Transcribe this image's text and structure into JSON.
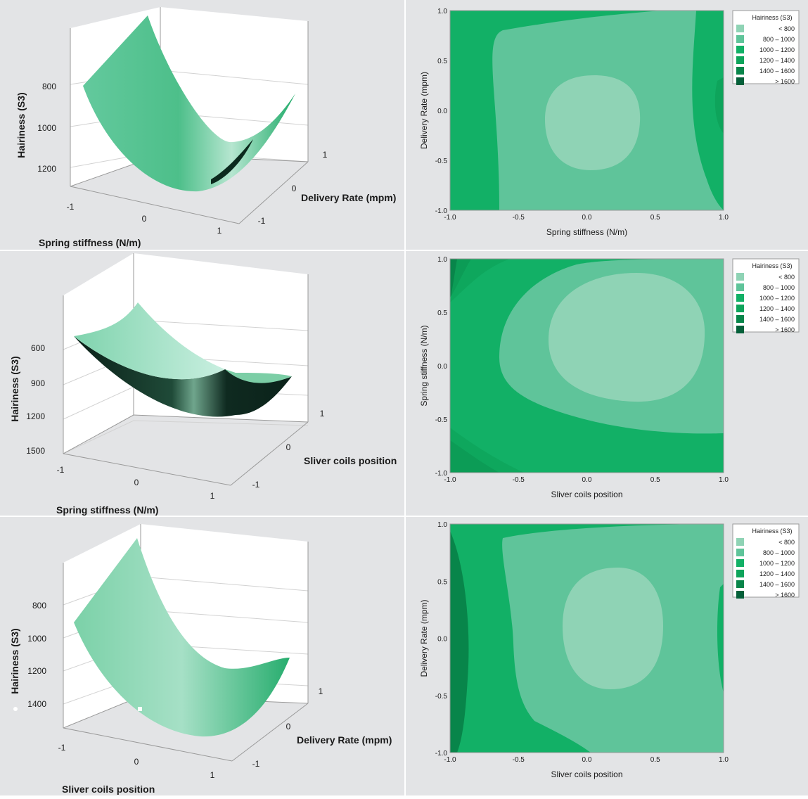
{
  "colors": {
    "background": "#e3e4e6",
    "levels": [
      "#8fd3b5",
      "#5fc49a",
      "#12b066",
      "#0ea45b",
      "#08854a",
      "#05603a"
    ],
    "surface": "#3dbc82",
    "surface_dark": "#0c2a1e"
  },
  "chart_data": [
    {
      "type": "surface",
      "x_label": "Spring stiffness (N/m)",
      "y_label": "Delivery Rate (mpm)",
      "z_label": "Hairiness (S3)",
      "x_ticks": [
        "-1",
        "0",
        "1"
      ],
      "y_ticks": [
        "-1",
        "0",
        "1"
      ],
      "z_ticks": [
        "800",
        "1000",
        "1200"
      ],
      "surface_shape": "parabolic trough with minimum near 700 at spring stiffness 0",
      "z_min": 700
    },
    {
      "type": "contour",
      "x_label": "Spring stiffness (N/m)",
      "y_label": "Delivery Rate (mpm)",
      "x_ticks": [
        "-1.0",
        "-0.5",
        "0.0",
        "0.5",
        "1.0"
      ],
      "y_ticks": [
        "-1.0",
        "-0.5",
        "0.0",
        "0.5",
        "1.0"
      ],
      "legend": {
        "title": "Hairiness (S3)",
        "entries": [
          "<   800",
          "800 –  1000",
          "1000 –  1200",
          "1200 –  1400",
          "1400 –  1600",
          ">  1600"
        ]
      },
      "minimum_center": [
        0.0,
        -0.1
      ]
    },
    {
      "type": "surface",
      "x_label": "Spring stiffness (N/m)",
      "y_label": "Sliver coils position",
      "z_label": "Hairiness (S3)",
      "x_ticks": [
        "-1",
        "0",
        "1"
      ],
      "y_ticks": [
        "-1",
        "0",
        "1"
      ],
      "z_ticks": [
        "600",
        "900",
        "1200",
        "1500"
      ],
      "surface_shape": "saddle-like bowl, dark underside visible"
    },
    {
      "type": "contour",
      "x_label": "Sliver coils position",
      "y_label": "Spring stiffness (N/m)",
      "x_ticks": [
        "-1.0",
        "-0.5",
        "0.0",
        "0.5",
        "1.0"
      ],
      "y_ticks": [
        "-1.0",
        "-0.5",
        "0.0",
        "0.5",
        "1.0"
      ],
      "legend": {
        "title": "Hairiness (S3)",
        "entries": [
          "<   800",
          "800 –  1000",
          "1000 –  1200",
          "1200 –  1400",
          "1400 –  1600",
          ">  1600"
        ]
      },
      "minimum_center": [
        0.35,
        0.2
      ]
    },
    {
      "type": "surface",
      "x_label": "Sliver coils position",
      "y_label": "Delivery Rate (mpm)",
      "z_label": "Hairiness (S3)",
      "x_ticks": [
        "-1",
        "0",
        "1"
      ],
      "y_ticks": [
        "-1",
        "0",
        "1"
      ],
      "z_ticks": [
        "800",
        "1000",
        "1200",
        "1400"
      ],
      "surface_shape": "parabolic trough with minimum near 700"
    },
    {
      "type": "contour",
      "x_label": "Sliver coils position",
      "y_label": "Delivery Rate (mpm)",
      "x_ticks": [
        "-1.0",
        "-0.5",
        "0.0",
        "0.5",
        "1.0"
      ],
      "y_ticks": [
        "-1.0",
        "-0.5",
        "0.0",
        "0.5",
        "1.0"
      ],
      "legend": {
        "title": "Hairiness (S3)",
        "entries": [
          "<   800",
          "800 –  1000",
          "1000 –  1200",
          "1200 –  1400",
          "1400 –  1600",
          ">  1600"
        ]
      },
      "minimum_center": [
        0.1,
        0.05
      ]
    }
  ]
}
